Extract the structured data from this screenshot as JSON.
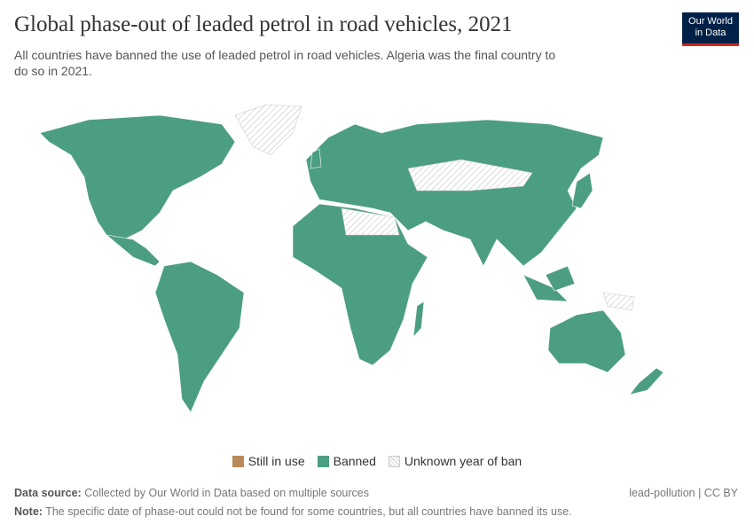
{
  "header": {
    "title": "Global phase-out of leaded petrol in road vehicles, 2021",
    "subtitle": "All countries have banned the use of leaded petrol in road vehicles. Algeria was the final country to do so in 2021.",
    "logo": [
      "Our World",
      "in Data"
    ]
  },
  "legend": [
    {
      "label": "Still in use",
      "color": "#b98b5a",
      "hatched": false
    },
    {
      "label": "Banned",
      "color": "#4c9e82",
      "hatched": false
    },
    {
      "label": "Unknown year of ban",
      "color": "#cccccc",
      "hatched": true
    }
  ],
  "footer": {
    "source_label": "Data source:",
    "source": "Collected by Our World in Data based on multiple sources",
    "slug": "lead-pollution | CC BY",
    "note_label": "Note:",
    "note": "The specific date of phase-out could not be found for some countries, but all countries have banned its use."
  }
}
